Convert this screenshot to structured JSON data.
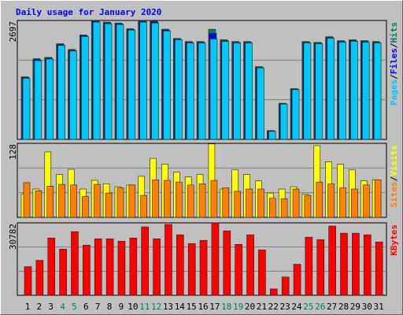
{
  "chart_data": [
    {
      "type": "bar",
      "title": "Daily usage for January 2020",
      "categories": [
        "1",
        "2",
        "3",
        "4",
        "5",
        "6",
        "7",
        "8",
        "9",
        "10",
        "11",
        "12",
        "13",
        "14",
        "15",
        "16",
        "17",
        "18",
        "19",
        "20",
        "21",
        "22",
        "23",
        "24",
        "25",
        "26",
        "27",
        "28",
        "29",
        "30",
        "31"
      ],
      "category_colors": [
        "#000000",
        "#000000",
        "#000000",
        "#00805C",
        "#00805C",
        "#000000",
        "#000000",
        "#000000",
        "#000000",
        "#000000",
        "#00805C",
        "#00805C",
        "#000000",
        "#000000",
        "#000000",
        "#000000",
        "#000000",
        "#00805C",
        "#00805C",
        "#000000",
        "#000000",
        "#000000",
        "#000000",
        "#000000",
        "#00805C",
        "#00805C",
        "#000000",
        "#000000",
        "#000000",
        "#000000",
        "#000000"
      ],
      "legend_separator": "/",
      "series": [
        {
          "name": "Hits",
          "color": "#00805C",
          "values": [
            1420,
            1830,
            1860,
            2170,
            2040,
            2370,
            2697,
            2660,
            2640,
            2510,
            2697,
            2690,
            2500,
            2290,
            2220,
            2220,
            2497,
            2260,
            2220,
            2220,
            1650,
            200,
            820,
            1150,
            2220,
            2200,
            2330,
            2240,
            2260,
            2240,
            2220
          ]
        },
        {
          "name": "Files",
          "color": "#0000FF",
          "values": [
            1400,
            1810,
            1840,
            2150,
            2020,
            2350,
            2680,
            2640,
            2620,
            2490,
            2680,
            2670,
            2480,
            2270,
            2200,
            2200,
            2405,
            2240,
            2200,
            2200,
            1630,
            190,
            810,
            1140,
            2200,
            2180,
            2310,
            2220,
            2240,
            2220,
            2200
          ]
        },
        {
          "name": "Pages",
          "color": "#00C8F8",
          "values": [
            1385,
            1786,
            1822,
            2132,
            2005,
            2333,
            2660,
            2624,
            2606,
            2478,
            2660,
            2640,
            2460,
            2260,
            2187,
            2187,
            2278,
            2223,
            2187,
            2187,
            1622,
            182,
            802,
            1130,
            2187,
            2169,
            2296,
            2205,
            2223,
            2205,
            2187
          ]
        }
      ],
      "ylim": [
        0,
        2697
      ],
      "yticks": [
        2697
      ]
    },
    {
      "type": "bar",
      "legend_separator": "/",
      "series": [
        {
          "name": "Visits",
          "color": "#FFFF00",
          "values": [
            40,
            49,
            113,
            74,
            83,
            49,
            64,
            58,
            53,
            56,
            71,
            102,
            92,
            78,
            70,
            74,
            127,
            49,
            82,
            74,
            63,
            42,
            49,
            53,
            40,
            124,
            96,
            92,
            82,
            63,
            65
          ]
        },
        {
          "name": "Sites",
          "color": "#FF8000",
          "values": [
            60,
            46,
            54,
            57,
            56,
            36,
            57,
            42,
            51,
            56,
            38,
            65,
            64,
            61,
            56,
            58,
            64,
            51,
            45,
            49,
            49,
            33,
            32,
            49,
            38,
            61,
            58,
            51,
            49,
            56,
            65
          ]
        }
      ],
      "ylim": [
        0,
        128
      ],
      "yticks": [
        128
      ]
    },
    {
      "type": "bar",
      "series": [
        {
          "name": "KBytes",
          "color": "#FF0000",
          "values": [
            12179,
            14885,
            24358,
            19621,
            27064,
            21313,
            24019,
            24019,
            23004,
            24358,
            29093,
            24019,
            30108,
            25711,
            21989,
            23342,
            30782,
            27402,
            21651,
            25711,
            19283,
            2706,
            7781,
            13194,
            24696,
            23681,
            29432,
            26387,
            26387,
            25711,
            22666
          ]
        }
      ],
      "ylim": [
        0,
        30782
      ],
      "yticks": [
        30782
      ]
    }
  ]
}
